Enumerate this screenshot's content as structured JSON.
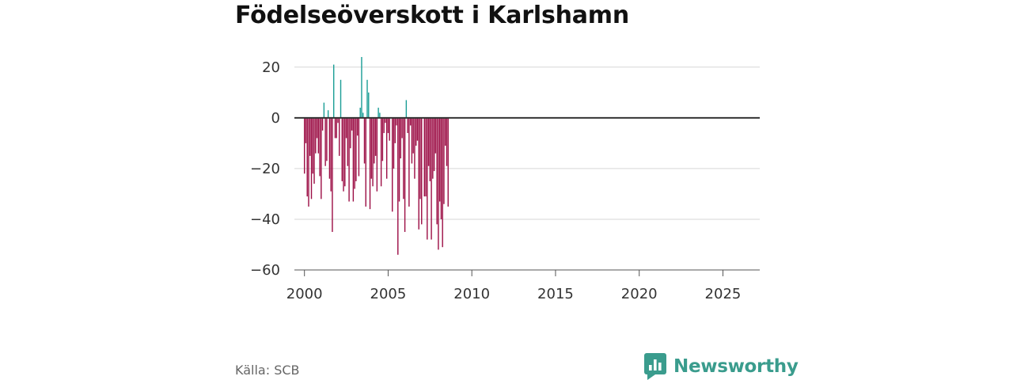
{
  "title": "Födelseöverskott i Karlshamn",
  "source": "Källa: SCB",
  "brand": {
    "name": "Newsworthy",
    "icon": "bar-chart-icon",
    "color": "#3a9c8d"
  },
  "chart_data": {
    "type": "bar",
    "title": "Födelseöverskott i Karlshamn",
    "xlabel": "",
    "ylabel": "",
    "ylim": [
      -60,
      24
    ],
    "xlim": [
      1999.4,
      2027.2
    ],
    "yticks": [
      20,
      0,
      -20,
      -40,
      -60
    ],
    "ytick_labels": [
      "20",
      "0",
      "−20",
      "−40",
      "−60"
    ],
    "xticks": [
      2000,
      2005,
      2010,
      2015,
      2020,
      2025
    ],
    "xtick_labels": [
      "2000",
      "2005",
      "2010",
      "2015",
      "2020",
      "2025"
    ],
    "frequency": "monthly",
    "start": "2000-01",
    "colors": {
      "positive": "#1b9e96",
      "negative": "#9c0e45"
    },
    "values": [
      -22,
      -10,
      -31,
      -35,
      -15,
      -32,
      -22,
      -26,
      -14,
      -8,
      -14,
      -23,
      -32,
      -5,
      6,
      -19,
      -17,
      3,
      -24,
      -29,
      -45,
      21,
      -8,
      -8,
      -2,
      -15,
      15,
      -25,
      -29,
      -27,
      -8,
      -19,
      -33,
      -12,
      -5,
      -33,
      -28,
      -25,
      -7,
      -23,
      4,
      24,
      2,
      -18,
      -35,
      15,
      10,
      -36,
      -24,
      -27,
      -18,
      -15,
      -29,
      4,
      2,
      -27,
      -17,
      -6,
      -2,
      -24,
      -6,
      -9,
      0,
      -37,
      -20,
      -10,
      -3,
      -54,
      -33,
      -16,
      -8,
      -32,
      -45,
      7,
      -6,
      -35,
      -3,
      -18,
      -14,
      -24,
      -11,
      -9,
      -44,
      -32,
      -42,
      0,
      -31,
      -31,
      -48,
      -19,
      -25,
      -48,
      -24,
      -21,
      -14,
      -42,
      -52,
      -33,
      -40,
      -51,
      -34,
      -11,
      -19,
      -35
    ]
  }
}
